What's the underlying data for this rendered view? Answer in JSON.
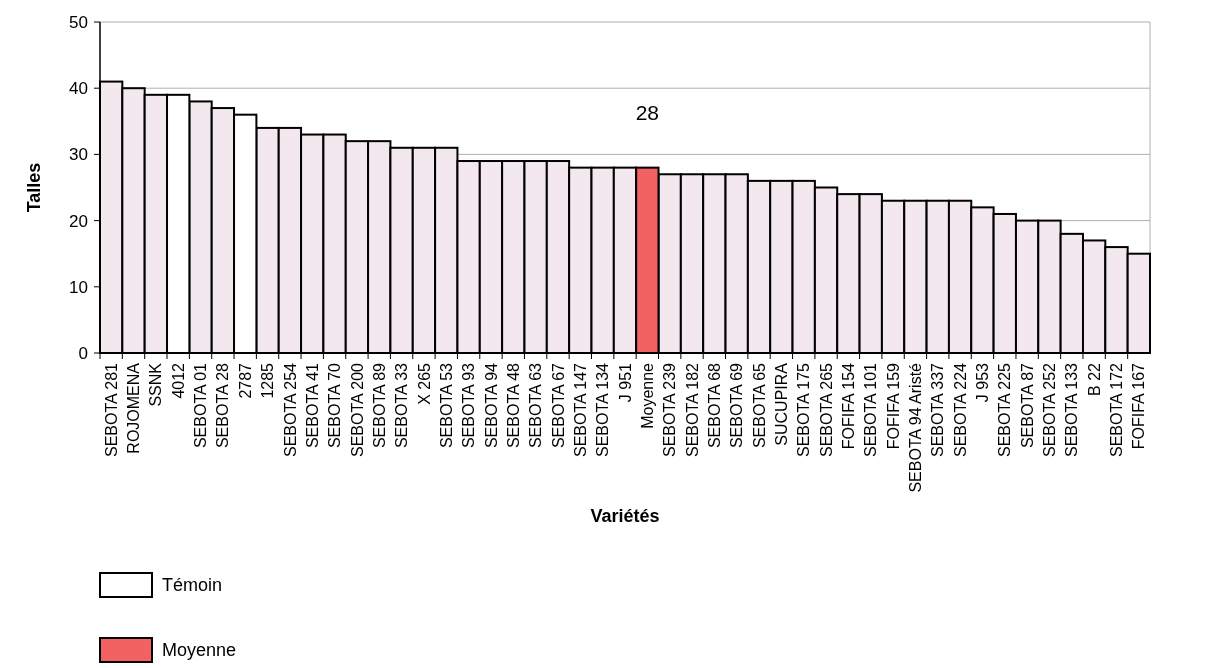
{
  "chart_data": {
    "type": "bar",
    "xlabel": "Variétés",
    "ylabel": "Talles",
    "categories": [
      "SEBOTA 281",
      "ROJOMENA",
      "SSNK",
      "4012",
      "SEBOTA 01",
      "SEBOTA 28",
      "2787",
      "1285",
      "SEBOTA 254",
      "SEBOTA 41",
      "SEBOTA 70",
      "SEBOTA 200",
      "SEBOTA 89",
      "SEBOTA 33",
      "X 265",
      "SEBOTA 53",
      "SEBOTA 93",
      "SEBOTA 94",
      "SEBOTA 48",
      "SEBOTA 63",
      "SEBOTA 67",
      "SEBOTA 147",
      "SEBOTA 134",
      "J 951",
      "Moyenne",
      "SEBOTA 239",
      "SEBOTA 182",
      "SEBOTA 68",
      "SEBOTA 69",
      "SEBOTA 65",
      "SUCUPIRA",
      "SEBOTA 175",
      "SEBOTA 265",
      "FOFIFA 154",
      "SEBOTA 101",
      "FOFIFA 159",
      "SEBOTA 94 Aristé",
      "SEBOTA 337",
      "SEBOTA 224",
      "J 953",
      "SEBOTA 225",
      "SEBOTA 87",
      "SEBOTA 252",
      "SEBOTA 133",
      "B 22",
      "SEBOTA 172",
      "FOFIFA 167"
    ],
    "series": [
      {
        "color": "#f3e8ee",
        "values": [
          41,
          40,
          39,
          null,
          38,
          37,
          null,
          34,
          34,
          33,
          33,
          32,
          32,
          31,
          31,
          31,
          29,
          29,
          29,
          29,
          29,
          28,
          28,
          28,
          null,
          27,
          27,
          27,
          27,
          26,
          26,
          26,
          25,
          24,
          24,
          23,
          23,
          23,
          23,
          22,
          21,
          20,
          20,
          18,
          17,
          16,
          15
        ]
      },
      {
        "name": "Témoin",
        "color": "#ffffff",
        "values": [
          null,
          null,
          null,
          39,
          null,
          null,
          36,
          null,
          null,
          null,
          null,
          null,
          null,
          null,
          null,
          null,
          null,
          null,
          null,
          null,
          null,
          null,
          null,
          null,
          null,
          null,
          null,
          null,
          null,
          null,
          null,
          null,
          null,
          null,
          null,
          null,
          null,
          null,
          null,
          null,
          null,
          null,
          null,
          null,
          null,
          null,
          null
        ]
      },
      {
        "name": "Moyenne",
        "color": "#f26262",
        "values": [
          null,
          null,
          null,
          null,
          null,
          null,
          null,
          null,
          null,
          null,
          null,
          null,
          null,
          null,
          null,
          null,
          null,
          null,
          null,
          null,
          null,
          null,
          null,
          null,
          28,
          null,
          null,
          null,
          null,
          null,
          null,
          null,
          null,
          null,
          null,
          null,
          null,
          null,
          null,
          null,
          null,
          null,
          null,
          null,
          null,
          null,
          null
        ],
        "value_labels": [
          null,
          null,
          null,
          null,
          null,
          null,
          null,
          null,
          null,
          null,
          null,
          null,
          null,
          null,
          null,
          null,
          null,
          null,
          null,
          null,
          null,
          null,
          null,
          null,
          "28",
          null,
          null,
          null,
          null,
          null,
          null,
          null,
          null,
          null,
          null,
          null,
          null,
          null,
          null,
          null,
          null,
          null,
          null,
          null,
          null,
          null,
          null
        ]
      }
    ],
    "ylim": [
      0,
      50
    ],
    "yticks": [
      0,
      10,
      20,
      30,
      40,
      50
    ],
    "grid": "y",
    "legend": "bottom left"
  }
}
